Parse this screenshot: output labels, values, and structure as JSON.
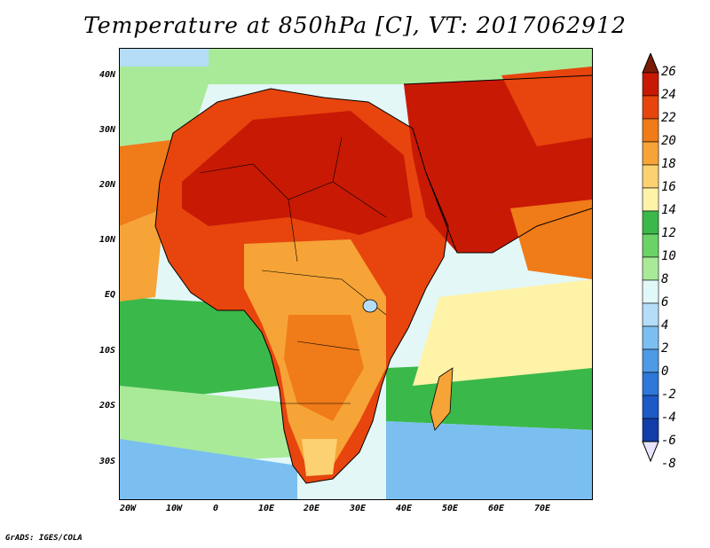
{
  "title": "Temperature at 850hPa [C], VT: 2017062912",
  "credit": "GrADS: IGES/COLA",
  "lat_labels": [
    "40N",
    "30N",
    "20N",
    "10N",
    "EQ",
    "10S",
    "20S",
    "30S"
  ],
  "lon_labels": [
    "20W",
    "10W",
    "0",
    "10E",
    "20E",
    "30E",
    "40E",
    "50E",
    "60E",
    "70E"
  ],
  "colorbar": {
    "ticks": [
      "26",
      "24",
      "22",
      "20",
      "18",
      "16",
      "14",
      "12",
      "10",
      "8",
      "6",
      "4",
      "2",
      "0",
      "-2",
      "-4",
      "-6",
      "-8"
    ],
    "colors": [
      "#7b1d06",
      "#c81905",
      "#e7450d",
      "#f07b19",
      "#f6a437",
      "#fbd171",
      "#fff3a8",
      "#3bb84a",
      "#6ad267",
      "#a9ea99",
      "#e1f8f8",
      "#b5ddf7",
      "#7bbff1",
      "#4d9ae7",
      "#2d78d9",
      "#1d5ac8",
      "#123ca8",
      "#0a1e7c"
    ]
  }
}
